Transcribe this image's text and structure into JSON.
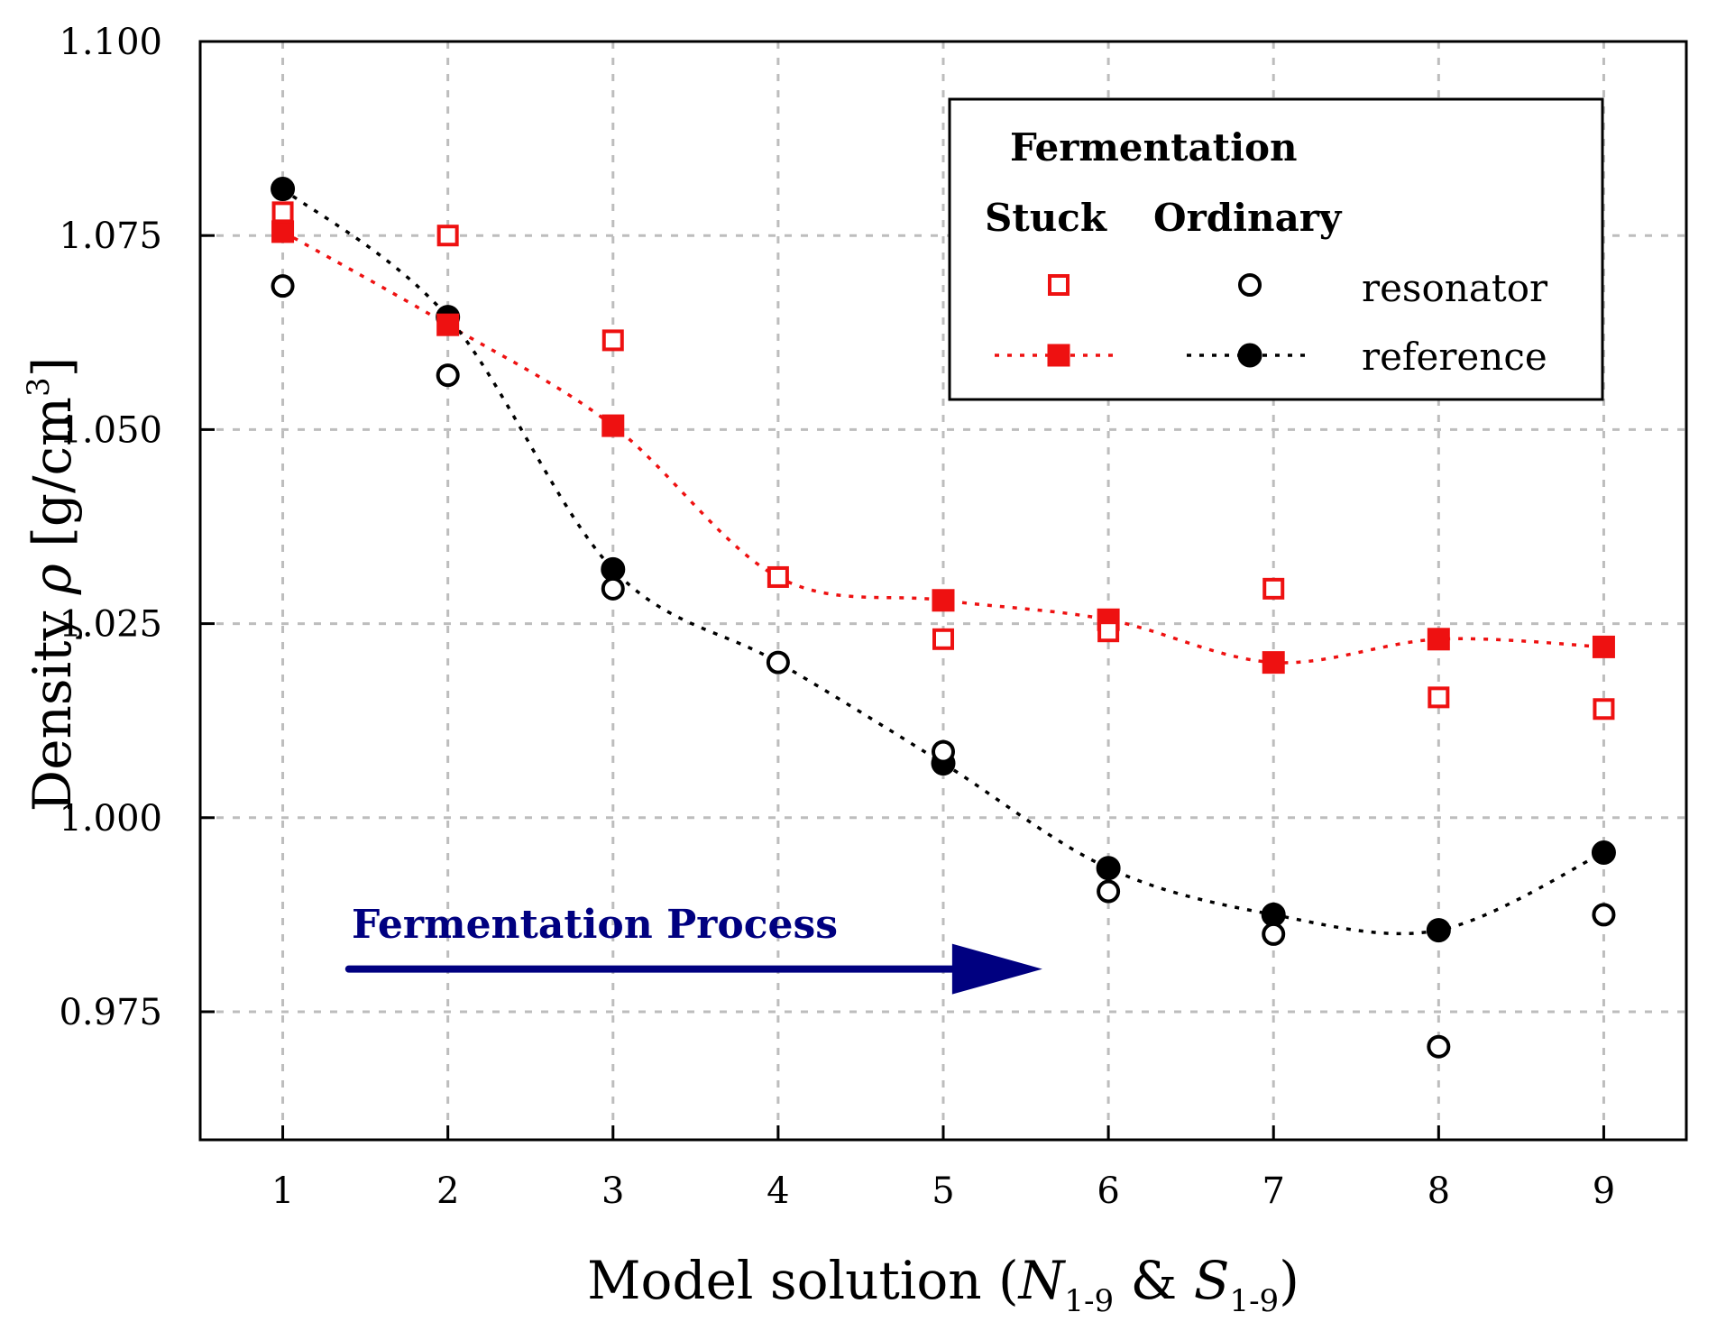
{
  "chart_data": {
    "type": "scatter",
    "title": "",
    "xlabel": {
      "main": "Model solution (",
      "n": "N",
      "n_sub": "1-9",
      "amp": " & ",
      "s": "S",
      "s_sub": "1-9",
      "close": ")"
    },
    "ylabel": {
      "main": "Density ",
      "rho": "ρ",
      "unit": " [g/cm",
      "sup": "3",
      "close": "]"
    },
    "x": [
      1,
      2,
      3,
      4,
      5,
      6,
      7,
      8,
      9
    ],
    "xlim": [
      0.5,
      9.5
    ],
    "ylim": [
      0.9585,
      1.1
    ],
    "x_ticks": [
      "1",
      "2",
      "3",
      "4",
      "5",
      "6",
      "7",
      "8",
      "9"
    ],
    "y_ticks": [
      {
        "value": 0.975,
        "label": "0.975"
      },
      {
        "value": 1.0,
        "label": "1.000"
      },
      {
        "value": 1.025,
        "label": "1.025"
      },
      {
        "value": 1.05,
        "label": "1.050"
      },
      {
        "value": 1.075,
        "label": "1.075"
      },
      {
        "value": 1.1,
        "label": "1.100"
      }
    ],
    "grid": true,
    "series": [
      {
        "name": "Stuck resonator",
        "group": "Stuck",
        "kind": "resonator",
        "color": "#ee1111",
        "marker": "square-open",
        "line": false,
        "values": [
          1.078,
          1.075,
          1.0615,
          1.031,
          1.023,
          1.024,
          1.0295,
          1.0155,
          1.014
        ]
      },
      {
        "name": "Stuck reference",
        "group": "Stuck",
        "kind": "reference",
        "color": "#ee1111",
        "marker": "square-filled",
        "line": true,
        "values": [
          1.0755,
          1.0635,
          1.0505,
          null,
          1.028,
          1.0255,
          1.02,
          1.023,
          1.022
        ]
      },
      {
        "name": "Ordinary resonator",
        "group": "Ordinary",
        "kind": "resonator",
        "color": "#000000",
        "marker": "circle-open",
        "line": false,
        "values": [
          1.0685,
          1.057,
          1.0295,
          1.02,
          1.0085,
          0.9905,
          0.985,
          0.9705,
          0.9875
        ]
      },
      {
        "name": "Ordinary reference",
        "group": "Ordinary",
        "kind": "reference",
        "color": "#000000",
        "marker": "circle-filled",
        "line": true,
        "values": [
          1.081,
          1.0645,
          1.032,
          null,
          1.007,
          0.9935,
          0.9875,
          0.9855,
          0.9955
        ]
      }
    ],
    "legend": {
      "position": "top-right",
      "title": "Fermentation",
      "col_stuck": "Stuck",
      "col_ordinary": "Ordinary",
      "row_resonator": "resonator",
      "row_reference": "reference"
    },
    "annotation": {
      "text": "Fermentation Process",
      "color": "#000080",
      "arrow_from_x": 1.4,
      "arrow_to_x": 5.6,
      "arrow_y": 0.9805
    }
  }
}
